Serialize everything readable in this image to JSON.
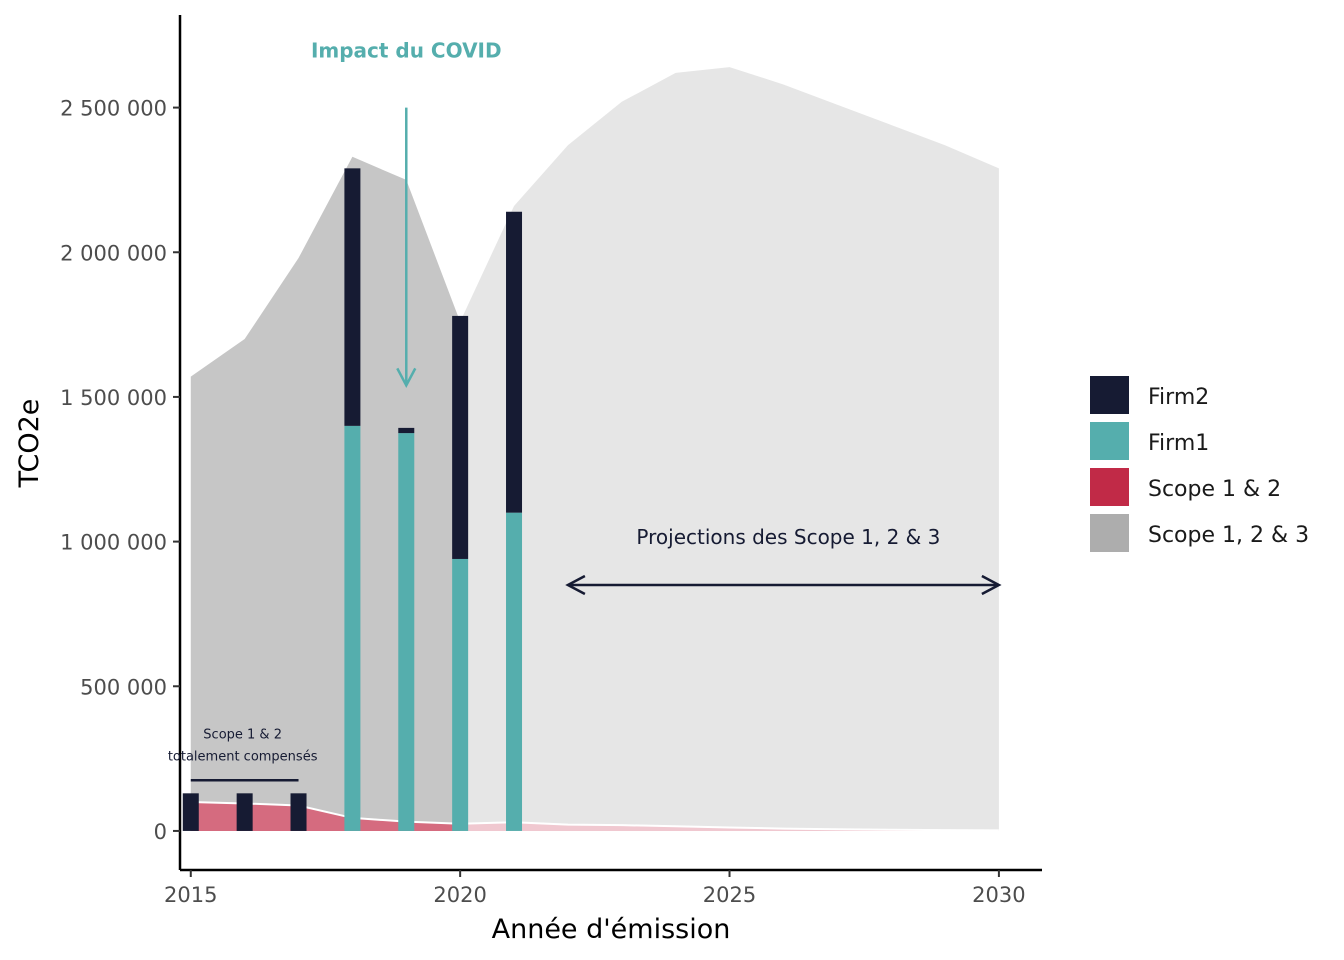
{
  "chart_data": {
    "type": "bar",
    "xlabel": "Année d'émission",
    "ylabel": "TCO2e",
    "xlim": [
      2014.8,
      2030.8
    ],
    "ylim": [
      -135000,
      2820000
    ],
    "x_ticks": [
      2015,
      2020,
      2025,
      2030
    ],
    "y_ticks": [
      0,
      500000,
      1000000,
      1500000,
      2000000,
      2500000
    ],
    "y_tick_labels": [
      "0",
      "500 000",
      "1 000 000",
      "1 500 000",
      "2 000 000",
      "2 500 000"
    ],
    "area_scope123_historical": {
      "name": "Scope 1, 2 & 3",
      "x": [
        2015,
        2016,
        2017,
        2018,
        2019,
        2020
      ],
      "y": [
        1570000,
        1700000,
        1980000,
        2330000,
        2250000,
        1760000
      ]
    },
    "area_scope123_projection": {
      "x": [
        2020,
        2021,
        2022,
        2023,
        2024,
        2025,
        2026,
        2027,
        2028,
        2029,
        2030
      ],
      "y": [
        1760000,
        2160000,
        2370000,
        2520000,
        2620000,
        2640000,
        2580000,
        2510000,
        2440000,
        2370000,
        2290000
      ]
    },
    "area_scope12_historical": {
      "name": "Scope 1 & 2",
      "x": [
        2015,
        2016,
        2017,
        2018,
        2019,
        2020
      ],
      "y": [
        100000,
        95000,
        88000,
        45000,
        32000,
        25000
      ]
    },
    "area_scope12_projection": {
      "x": [
        2020,
        2021,
        2022,
        2023,
        2024,
        2025,
        2026,
        2027,
        2028,
        2029,
        2030
      ],
      "y": [
        25000,
        30000,
        22000,
        20000,
        16000,
        12000,
        8000,
        6000,
        4000,
        3000,
        2000
      ]
    },
    "bars": {
      "x": [
        2015,
        2016,
        2017,
        2018,
        2019,
        2020,
        2021
      ],
      "series": [
        {
          "name": "Firm1",
          "values": [
            0,
            0,
            0,
            1400000,
            1375000,
            940000,
            1100000
          ]
        },
        {
          "name": "Firm2",
          "values": [
            130000,
            130000,
            130000,
            890000,
            18000,
            840000,
            1040000
          ]
        }
      ]
    },
    "legend": {
      "position": "right",
      "items": [
        {
          "label": "Firm2",
          "color": "#161b33"
        },
        {
          "label": "Firm1",
          "color": "#55aead"
        },
        {
          "label": "Scope 1 & 2",
          "color": "#c12a47"
        },
        {
          "label": "Scope 1, 2 & 3",
          "color": "#adadad"
        }
      ]
    },
    "annotations": {
      "covid": {
        "text": "Impact du COVID",
        "x": 2019,
        "arrow_from": 2500000,
        "arrow_to": 1540000,
        "color": "#55aead"
      },
      "projections": {
        "text": "Projections des Scope 1, 2 & 3",
        "x_from": 2022,
        "x_to": 2030,
        "y": 850000,
        "text_y": 960000,
        "color": "#161b33"
      },
      "compensated": {
        "line1": "Scope 1 & 2",
        "line2": "totalement compensés",
        "x_from": 2015,
        "x_to": 2017,
        "y": 175000
      }
    },
    "colors": {
      "firm2": "#161b33",
      "firm1": "#55aead",
      "scope12": "#c12a47",
      "scope123_hist": "#c6c6c6",
      "scope123_proj": "#e6e6e6",
      "scope12_hist_fill": "#d56b7f",
      "scope12_proj_fill": "#f0c8d0"
    },
    "grid": false
  }
}
